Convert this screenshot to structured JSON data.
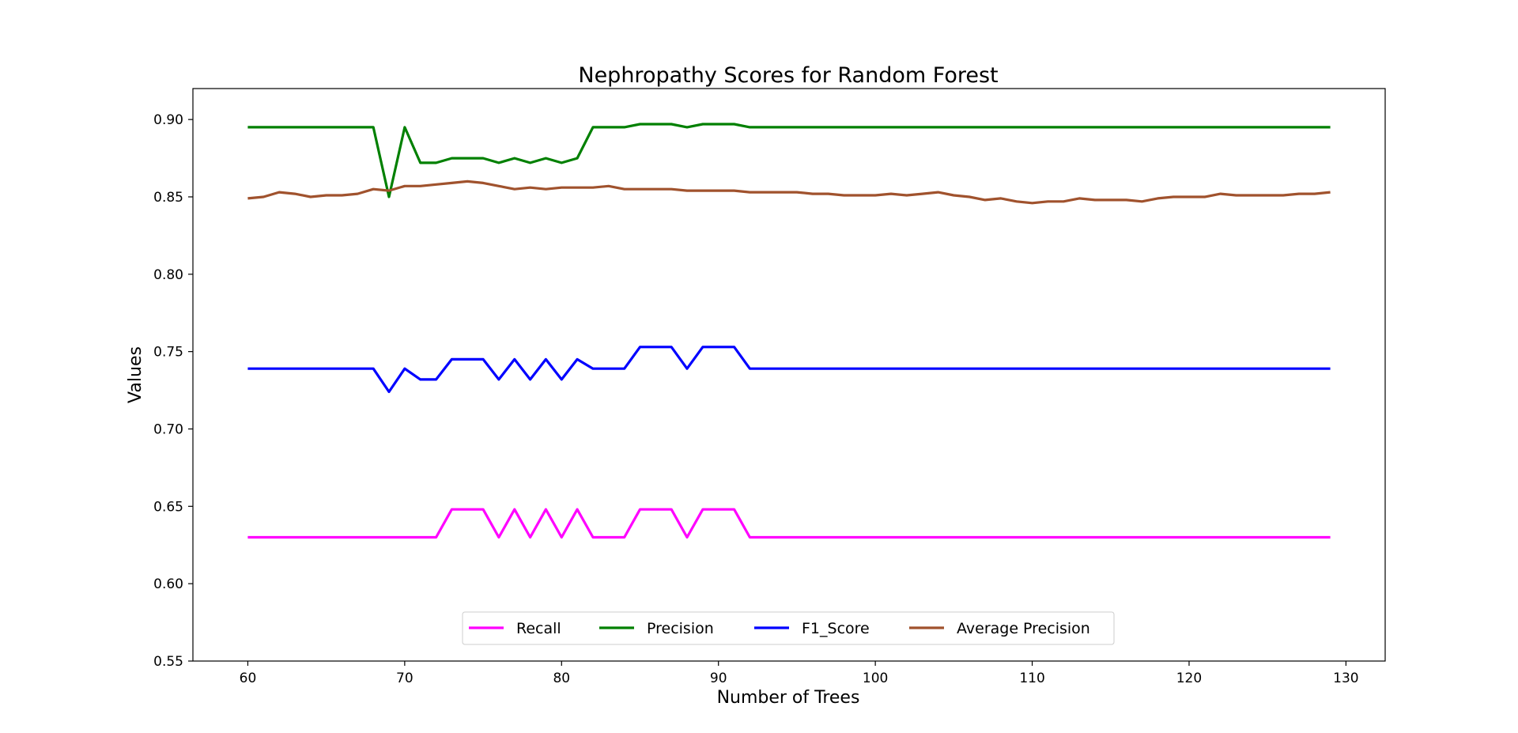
{
  "chart_data": {
    "type": "line",
    "title": "Nephropathy Scores for Random Forest",
    "xlabel": "Number of Trees",
    "ylabel": "Values",
    "xlim": [
      56.5,
      132.5
    ],
    "ylim": [
      0.55,
      0.92
    ],
    "xticks": [
      60,
      70,
      80,
      90,
      100,
      110,
      120,
      130
    ],
    "yticks": [
      "0.55",
      "0.60",
      "0.65",
      "0.70",
      "0.75",
      "0.80",
      "0.85",
      "0.90"
    ],
    "grid": false,
    "legend_position": "lower-center",
    "x": [
      60,
      61,
      62,
      63,
      64,
      65,
      66,
      67,
      68,
      69,
      70,
      71,
      72,
      73,
      74,
      75,
      76,
      77,
      78,
      79,
      80,
      81,
      82,
      83,
      84,
      85,
      86,
      87,
      88,
      89,
      90,
      91,
      92,
      93,
      94,
      95,
      96,
      97,
      98,
      99,
      100,
      101,
      102,
      103,
      104,
      105,
      106,
      107,
      108,
      109,
      110,
      111,
      112,
      113,
      114,
      115,
      116,
      117,
      118,
      119,
      120,
      121,
      122,
      123,
      124,
      125,
      126,
      127,
      128,
      129
    ],
    "series": [
      {
        "name": "Recall",
        "color": "#ff00ff",
        "values": [
          0.63,
          0.63,
          0.63,
          0.63,
          0.63,
          0.63,
          0.63,
          0.63,
          0.63,
          0.63,
          0.63,
          0.63,
          0.63,
          0.648,
          0.648,
          0.648,
          0.63,
          0.648,
          0.63,
          0.648,
          0.63,
          0.648,
          0.63,
          0.63,
          0.63,
          0.648,
          0.648,
          0.648,
          0.63,
          0.648,
          0.648,
          0.648,
          0.63,
          0.63,
          0.63,
          0.63,
          0.63,
          0.63,
          0.63,
          0.63,
          0.63,
          0.63,
          0.63,
          0.63,
          0.63,
          0.63,
          0.63,
          0.63,
          0.63,
          0.63,
          0.63,
          0.63,
          0.63,
          0.63,
          0.63,
          0.63,
          0.63,
          0.63,
          0.63,
          0.63,
          0.63,
          0.63,
          0.63,
          0.63,
          0.63,
          0.63,
          0.63,
          0.63,
          0.63,
          0.63
        ]
      },
      {
        "name": "Precision",
        "color": "#008000",
        "values": [
          0.895,
          0.895,
          0.895,
          0.895,
          0.895,
          0.895,
          0.895,
          0.895,
          0.895,
          0.85,
          0.895,
          0.872,
          0.872,
          0.875,
          0.875,
          0.875,
          0.872,
          0.875,
          0.872,
          0.875,
          0.872,
          0.875,
          0.895,
          0.895,
          0.895,
          0.897,
          0.897,
          0.897,
          0.895,
          0.897,
          0.897,
          0.897,
          0.895,
          0.895,
          0.895,
          0.895,
          0.895,
          0.895,
          0.895,
          0.895,
          0.895,
          0.895,
          0.895,
          0.895,
          0.895,
          0.895,
          0.895,
          0.895,
          0.895,
          0.895,
          0.895,
          0.895,
          0.895,
          0.895,
          0.895,
          0.895,
          0.895,
          0.895,
          0.895,
          0.895,
          0.895,
          0.895,
          0.895,
          0.895,
          0.895,
          0.895,
          0.895,
          0.895,
          0.895,
          0.895
        ]
      },
      {
        "name": "F1_Score",
        "color": "#0000ff",
        "values": [
          0.739,
          0.739,
          0.739,
          0.739,
          0.739,
          0.739,
          0.739,
          0.739,
          0.739,
          0.724,
          0.739,
          0.732,
          0.732,
          0.745,
          0.745,
          0.745,
          0.732,
          0.745,
          0.732,
          0.745,
          0.732,
          0.745,
          0.739,
          0.739,
          0.739,
          0.753,
          0.753,
          0.753,
          0.739,
          0.753,
          0.753,
          0.753,
          0.739,
          0.739,
          0.739,
          0.739,
          0.739,
          0.739,
          0.739,
          0.739,
          0.739,
          0.739,
          0.739,
          0.739,
          0.739,
          0.739,
          0.739,
          0.739,
          0.739,
          0.739,
          0.739,
          0.739,
          0.739,
          0.739,
          0.739,
          0.739,
          0.739,
          0.739,
          0.739,
          0.739,
          0.739,
          0.739,
          0.739,
          0.739,
          0.739,
          0.739,
          0.739,
          0.739,
          0.739,
          0.739
        ]
      },
      {
        "name": "Average Precision",
        "color": "#a0522d",
        "values": [
          0.849,
          0.85,
          0.853,
          0.852,
          0.85,
          0.851,
          0.851,
          0.852,
          0.855,
          0.854,
          0.857,
          0.857,
          0.858,
          0.859,
          0.86,
          0.859,
          0.857,
          0.855,
          0.856,
          0.855,
          0.856,
          0.856,
          0.856,
          0.857,
          0.855,
          0.855,
          0.855,
          0.855,
          0.854,
          0.854,
          0.854,
          0.854,
          0.853,
          0.853,
          0.853,
          0.853,
          0.852,
          0.852,
          0.851,
          0.851,
          0.851,
          0.852,
          0.851,
          0.852,
          0.853,
          0.851,
          0.85,
          0.848,
          0.849,
          0.847,
          0.846,
          0.847,
          0.847,
          0.849,
          0.848,
          0.848,
          0.848,
          0.847,
          0.849,
          0.85,
          0.85,
          0.85,
          0.852,
          0.851,
          0.851,
          0.851,
          0.851,
          0.852,
          0.852,
          0.853
        ]
      }
    ]
  }
}
